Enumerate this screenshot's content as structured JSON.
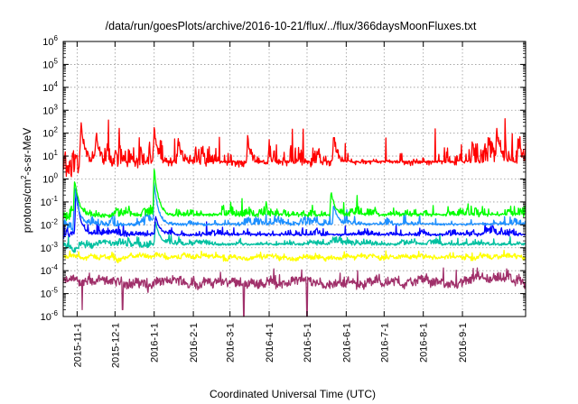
{
  "chart_data": {
    "type": "line",
    "title": "/data/run/goesPlots/archive/2016-10-21/flux/../flux/366daysMoonFluxes.txt",
    "xlabel": "Coordinated Universal Time (UTC)",
    "ylabel": "protons/cm2-s-sr-MeV",
    "ylabel_parts": {
      "base": "protons/cm",
      "sup": "2",
      "rest": "-s-sr-MeV"
    },
    "yscale": "log",
    "ylim": [
      1e-06,
      1000000.0
    ],
    "y_tick_exponents": [
      -6,
      -5,
      -4,
      -3,
      -2,
      -1,
      0,
      1,
      2,
      3,
      4,
      5,
      6
    ],
    "y_tick_base": "10",
    "xlim": [
      "2015-10-21",
      "2016-10-21"
    ],
    "x_ticks": [
      "2015-11-1",
      "2015-12-1",
      "2016-1-1",
      "2016-2-1",
      "2016-3-1",
      "2016-4-1",
      "2016-5-1",
      "2016-6-1",
      "2016-7-1",
      "2016-8-1",
      "2016-9-1"
    ],
    "grid": true,
    "legend": "none",
    "series": [
      {
        "color": "#ff0000",
        "level_log10": 0.6,
        "noise": 0.8,
        "events": [
          {
            "date": "2015-11-04",
            "peak_log10": 2.5
          },
          {
            "date": "2015-11-16",
            "peak_log10": 2.0
          },
          {
            "date": "2016-01-01",
            "peak_log10": 2.3
          },
          {
            "date": "2016-01-20",
            "peak_log10": 1.8
          },
          {
            "date": "2016-03-15",
            "peak_log10": 1.8
          },
          {
            "date": "2016-05-22",
            "peak_log10": 1.9
          },
          {
            "date": "2016-09-28",
            "peak_log10": 2.2
          },
          {
            "date": "2016-10-15",
            "peak_log10": 1.7
          }
        ]
      },
      {
        "color": "#00ff00",
        "level_log10": -1.6,
        "noise": 0.3,
        "events": [
          {
            "date": "2015-10-30",
            "peak_log10": 0.0
          },
          {
            "date": "2016-01-01",
            "peak_log10": 0.5
          },
          {
            "date": "2016-05-20",
            "peak_log10": -0.5
          }
        ]
      },
      {
        "color": "#1e90ff",
        "level_log10": -2.0,
        "noise": 0.25,
        "events": [
          {
            "date": "2015-10-30",
            "peak_log10": -0.3
          },
          {
            "date": "2016-01-01",
            "peak_log10": -0.2
          },
          {
            "date": "2016-05-22",
            "peak_log10": -1.1
          }
        ]
      },
      {
        "color": "#0000ff",
        "level_log10": -2.45,
        "noise": 0.22,
        "events": [
          {
            "date": "2015-10-31",
            "peak_log10": -0.3
          },
          {
            "date": "2016-01-02",
            "peak_log10": -1.6
          }
        ]
      },
      {
        "color": "#00c0a0",
        "level_log10": -2.85,
        "noise": 0.18,
        "events": [
          {
            "date": "2016-01-02",
            "peak_log10": -1.8
          }
        ]
      },
      {
        "color": "#ffff00",
        "level_log10": -3.4,
        "noise": 0.12,
        "events": []
      },
      {
        "color": "#a0306a",
        "level_log10": -4.5,
        "noise": 0.25,
        "dips": [
          {
            "date": "2015-11-05",
            "low_log10": -5.7
          },
          {
            "date": "2015-12-07",
            "low_log10": -5.7
          },
          {
            "date": "2016-03-12",
            "low_log10": -6.0
          },
          {
            "date": "2016-05-01",
            "low_log10": -6.0
          }
        ]
      }
    ]
  }
}
